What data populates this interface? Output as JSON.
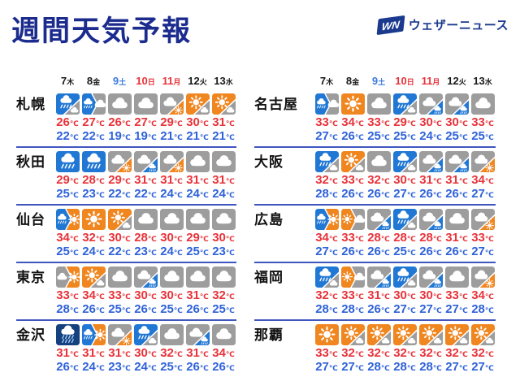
{
  "title": "週間天気予報",
  "logo": {
    "mark": "WN",
    "text": "ウェザーニュース"
  },
  "unit": "℃",
  "days": [
    {
      "num": "7",
      "weekday": "木",
      "color_type": "weekday"
    },
    {
      "num": "8",
      "weekday": "金",
      "color_type": "weekday"
    },
    {
      "num": "9",
      "weekday": "土",
      "color_type": "saturday"
    },
    {
      "num": "10",
      "weekday": "日",
      "color_type": "holiday"
    },
    {
      "num": "11",
      "weekday": "月",
      "color_type": "holiday"
    },
    {
      "num": "12",
      "weekday": "火",
      "color_type": "weekday"
    },
    {
      "num": "13",
      "weekday": "水",
      "color_type": "weekday"
    }
  ],
  "colors": {
    "title_navy": "#1b2b8e",
    "logo_navy": "#1b3a8e",
    "high_red": "#e8333a",
    "low_blue": "#2f62d9",
    "saturday_blue": "#3d7bde",
    "holiday_red": "#e8333a",
    "divider_blue": "#3f56c0",
    "icon_rain_blue": "#2178d4",
    "icon_heavy_rain_navy": "#15427f",
    "icon_cloud_gray": "#9d9d9d",
    "icon_sun_orange": "#f0861f"
  },
  "chart_data": {
    "type": "table",
    "title": "週間天気予報",
    "columns": [
      "7木",
      "8金",
      "9土",
      "10日",
      "11月",
      "12火",
      "13水"
    ],
    "column_groups": {
      "left": [
        "札幌",
        "秋田",
        "仙台",
        "東京",
        "金沢"
      ],
      "right": [
        "名古屋",
        "大阪",
        "広島",
        "福岡",
        "那覇"
      ]
    },
    "rows": [
      {
        "city": "札幌",
        "column": "left",
        "icons": [
          "rain>cloudy",
          "rain|cloudy",
          "cloudy",
          "cloudy",
          "cloudy>sunny",
          "sunny>cloudy",
          "sunny>cloudy"
        ],
        "high_c": [
          26,
          27,
          26,
          27,
          29,
          30,
          31
        ],
        "low_c": [
          22,
          22,
          19,
          19,
          21,
          21,
          21
        ]
      },
      {
        "city": "秋田",
        "column": "left",
        "icons": [
          "rain",
          "rain",
          "cloudy>sunny",
          "cloudy>rain",
          "cloudy>sunny",
          "cloudy",
          "cloudy"
        ],
        "high_c": [
          29,
          28,
          29,
          31,
          31,
          31,
          31
        ],
        "low_c": [
          25,
          23,
          22,
          22,
          24,
          24,
          24
        ]
      },
      {
        "city": "仙台",
        "column": "left",
        "icons": [
          "rain|sunny",
          "sunny",
          "sunny>cloudy",
          "cloudy",
          "cloudy",
          "cloudy",
          "cloudy"
        ],
        "high_c": [
          34,
          32,
          30,
          28,
          30,
          29,
          30
        ],
        "low_c": [
          25,
          24,
          22,
          23,
          24,
          25,
          23
        ]
      },
      {
        "city": "東京",
        "column": "left",
        "icons": [
          "cloudy|sunny",
          "sunny>cloudy",
          "cloudy",
          "cloudy>rain",
          "cloudy",
          "cloudy",
          "cloudy"
        ],
        "high_c": [
          33,
          34,
          33,
          30,
          30,
          31,
          32
        ],
        "low_c": [
          28,
          26,
          25,
          26,
          25,
          26,
          25
        ]
      },
      {
        "city": "金沢",
        "column": "left",
        "icons": [
          "heavy-rain",
          "rain|sunny",
          "cloudy>sunny",
          "rain>cloudy",
          "cloudy",
          "cloudy>rain",
          "cloudy"
        ],
        "high_c": [
          31,
          31,
          31,
          30,
          32,
          31,
          34
        ],
        "low_c": [
          26,
          24,
          23,
          24,
          25,
          26,
          26
        ]
      },
      {
        "city": "名古屋",
        "column": "right",
        "icons": [
          "rain|cloudy",
          "sunny",
          "cloudy",
          "rain>cloudy",
          "cloudy>rain",
          "cloudy>rain",
          "cloudy"
        ],
        "high_c": [
          33,
          34,
          33,
          29,
          30,
          30,
          33
        ],
        "low_c": [
          27,
          26,
          25,
          25,
          24,
          25,
          25
        ]
      },
      {
        "city": "大阪",
        "column": "right",
        "icons": [
          "rain>cloudy",
          "sunny>cloudy",
          "cloudy",
          "rain>cloudy",
          "cloudy>rain",
          "cloudy>rain",
          "cloudy>sunny"
        ],
        "high_c": [
          32,
          33,
          32,
          30,
          31,
          31,
          34
        ],
        "low_c": [
          28,
          26,
          26,
          27,
          26,
          26,
          27
        ]
      },
      {
        "city": "広島",
        "column": "right",
        "icons": [
          "rain|sunny",
          "sunny|cloudy",
          "cloudy>rain",
          "rain>cloudy",
          "cloudy>rain",
          "cloudy",
          "cloudy>sunny"
        ],
        "high_c": [
          34,
          33,
          28,
          28,
          28,
          31,
          33
        ],
        "low_c": [
          27,
          26,
          26,
          25,
          26,
          26,
          27
        ]
      },
      {
        "city": "福岡",
        "column": "right",
        "icons": [
          "rain>cloudy",
          "sunny|cloudy",
          "cloudy>rain",
          "rain>cloudy",
          "cloudy>rain",
          "cloudy",
          "cloudy>sunny"
        ],
        "high_c": [
          32,
          33,
          31,
          30,
          30,
          33,
          34
        ],
        "low_c": [
          28,
          28,
          26,
          27,
          27,
          27,
          28
        ]
      },
      {
        "city": "那覇",
        "column": "right",
        "icons": [
          "sunny",
          "sunny>cloudy",
          "sunny>cloudy",
          "sunny>cloudy",
          "sunny>cloudy",
          "sunny>cloudy",
          "sunny>cloudy"
        ],
        "high_c": [
          33,
          32,
          32,
          32,
          32,
          32,
          32
        ],
        "low_c": [
          27,
          27,
          28,
          28,
          28,
          27,
          27
        ]
      }
    ]
  }
}
